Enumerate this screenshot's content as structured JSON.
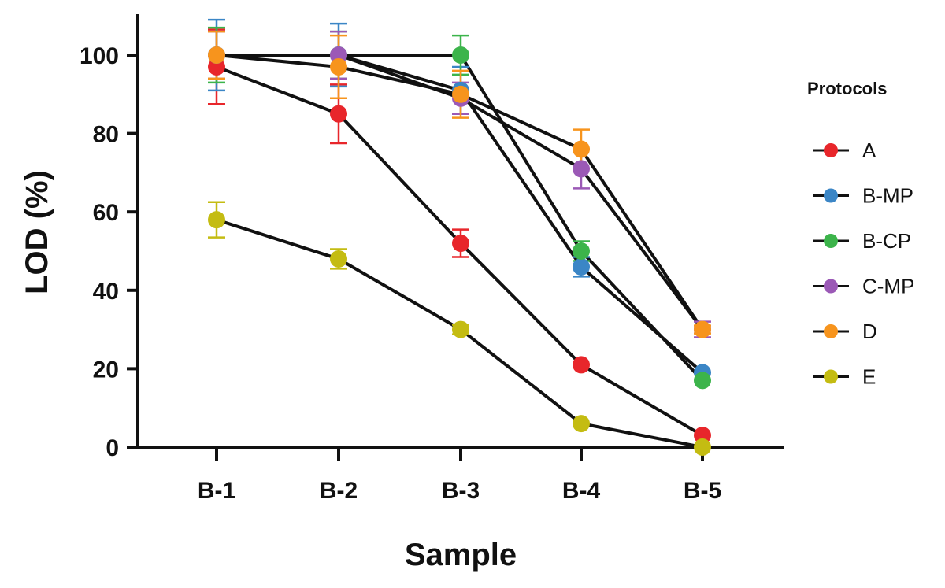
{
  "chart_data": {
    "type": "line",
    "title": "",
    "xlabel": "Sample",
    "ylabel": "LOD (%)",
    "categories": [
      "B-1",
      "B-2",
      "B-3",
      "B-4",
      "B-5"
    ],
    "ylim": [
      0,
      110
    ],
    "yticks": [
      0,
      20,
      40,
      60,
      80,
      100
    ],
    "grid": false,
    "legend": {
      "title": "Protocols",
      "position": "right"
    },
    "series": [
      {
        "name": "A",
        "color": "#e8262b",
        "values": [
          97,
          85,
          52,
          21,
          3
        ],
        "errors": [
          9.5,
          7.5,
          3.5,
          0,
          0
        ]
      },
      {
        "name": "B-MP",
        "color": "#3b86c6",
        "values": [
          100,
          100,
          91,
          46,
          19
        ],
        "errors": [
          9,
          8,
          6,
          2.5,
          0
        ]
      },
      {
        "name": "B-CP",
        "color": "#3cb44b",
        "values": [
          100,
          100,
          100,
          50,
          17
        ],
        "errors": [
          7,
          6,
          5,
          2.5,
          0
        ]
      },
      {
        "name": "C-MP",
        "color": "#9b59b6",
        "values": [
          100,
          100,
          89,
          71,
          30
        ],
        "errors": [
          6,
          6,
          4,
          5,
          2
        ]
      },
      {
        "name": "D",
        "color": "#f7941d",
        "values": [
          100,
          97,
          90,
          76,
          30
        ],
        "errors": [
          6,
          8,
          6,
          5,
          1
        ]
      },
      {
        "name": "E",
        "color": "#c4bc12",
        "values": [
          58,
          48,
          30,
          6,
          0
        ],
        "errors": [
          4.5,
          2.5,
          1.2,
          0,
          0
        ]
      }
    ]
  }
}
